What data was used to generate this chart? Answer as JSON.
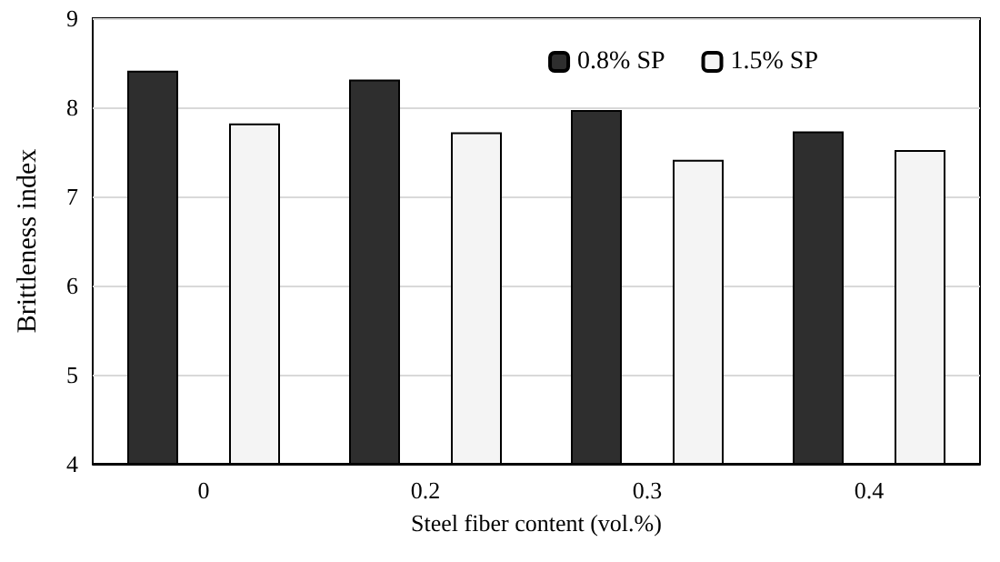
{
  "chart_data": {
    "type": "bar",
    "xlabel": "Steel fiber content (vol.%)",
    "ylabel": "Brittleness index",
    "categories": [
      "0",
      "0.2",
      "0.3",
      "0.4"
    ],
    "series": [
      {
        "name": "0.8% SP",
        "color": "#2e2e2e",
        "values": [
          8.41,
          8.31,
          7.97,
          7.73
        ]
      },
      {
        "name": "1.5% SP",
        "color": "#f4f4f4",
        "values": [
          7.82,
          7.72,
          7.41,
          7.52
        ]
      }
    ],
    "ylim": [
      4,
      9
    ],
    "yticks": [
      4,
      5,
      6,
      7,
      8,
      9
    ],
    "grid": "y",
    "legend": "top right"
  }
}
